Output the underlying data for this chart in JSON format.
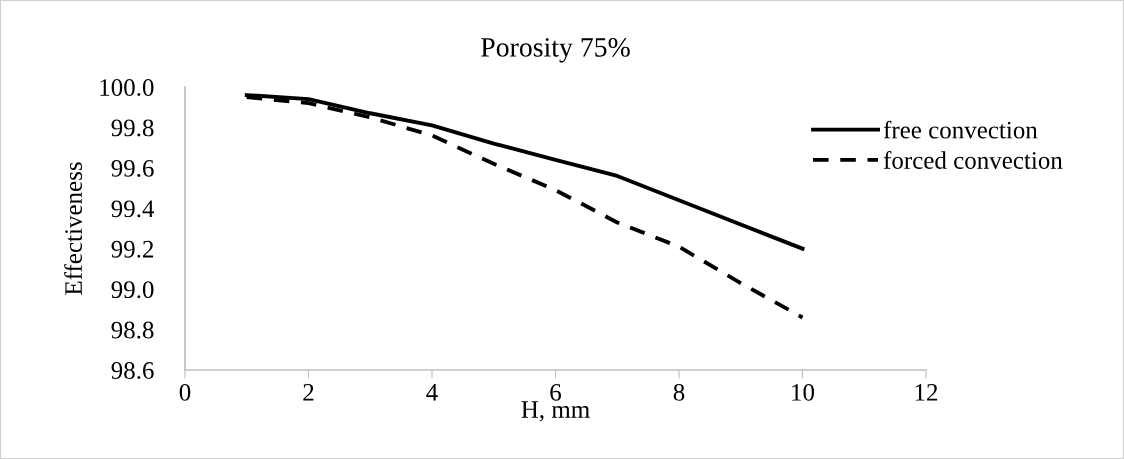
{
  "chart_data": {
    "type": "line",
    "title": "Porosity 75%",
    "xlabel": "H, mm",
    "ylabel": "Effectiveness",
    "x": [
      1,
      2,
      3,
      4,
      5,
      6,
      7,
      8,
      9,
      10
    ],
    "series": [
      {
        "name": "free convection",
        "color": "#000000",
        "line_style": "solid",
        "values": [
          99.96,
          99.94,
          99.87,
          99.81,
          99.72,
          99.64,
          99.56,
          99.44,
          99.32,
          99.2
        ]
      },
      {
        "name": "forced convection",
        "color": "#000000",
        "line_style": "dashed",
        "values": [
          99.95,
          99.92,
          99.85,
          99.76,
          99.62,
          99.49,
          99.33,
          99.21,
          99.03,
          98.86
        ]
      }
    ],
    "xlim": [
      0,
      12
    ],
    "xticks": [
      0,
      2,
      4,
      6,
      8,
      10,
      12
    ],
    "ylim": [
      98.6,
      100.0
    ],
    "yticks": [
      {
        "value": 98.6,
        "label": "98.6"
      },
      {
        "value": 98.8,
        "label": "98.8"
      },
      {
        "value": 99.0,
        "label": "99.0"
      },
      {
        "value": 99.2,
        "label": "99.2"
      },
      {
        "value": 99.4,
        "label": "99.4"
      },
      {
        "value": 99.6,
        "label": "99.6"
      },
      {
        "value": 99.8,
        "label": "99.8"
      },
      {
        "value": 100.0,
        "label": "100.0"
      }
    ],
    "grid": false,
    "legend": "top right"
  }
}
